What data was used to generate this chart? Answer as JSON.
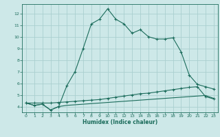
{
  "xlabel": "Humidex (Indice chaleur)",
  "bg_color": "#cde8e8",
  "line_color": "#1a6b5a",
  "grid_color": "#aacfcf",
  "xlim": [
    -0.5,
    23.5
  ],
  "ylim": [
    3.5,
    12.8
  ],
  "x_ticks": [
    0,
    1,
    2,
    3,
    4,
    5,
    6,
    7,
    8,
    9,
    10,
    11,
    12,
    13,
    14,
    15,
    16,
    17,
    18,
    19,
    20,
    21,
    22,
    23
  ],
  "y_ticks": [
    4,
    5,
    6,
    7,
    8,
    9,
    10,
    11,
    12
  ],
  "curve1_x": [
    0,
    1,
    2,
    3,
    4,
    5,
    6,
    7,
    8,
    9,
    10,
    11,
    12,
    13,
    14,
    15,
    16,
    17,
    18,
    19,
    20,
    21,
    22,
    23
  ],
  "curve1_y": [
    4.3,
    4.1,
    4.2,
    3.7,
    4.0,
    5.8,
    7.0,
    9.0,
    11.1,
    11.5,
    12.4,
    11.5,
    11.1,
    10.3,
    10.6,
    10.0,
    9.8,
    9.8,
    9.9,
    8.7,
    6.7,
    5.9,
    5.7,
    5.5
  ],
  "curve2_x": [
    0,
    1,
    2,
    3,
    4,
    5,
    6,
    7,
    8,
    9,
    10,
    11,
    12,
    13,
    14,
    15,
    16,
    17,
    18,
    19,
    20,
    21,
    22,
    23
  ],
  "curve2_y": [
    4.3,
    4.3,
    4.3,
    4.3,
    4.35,
    4.4,
    4.45,
    4.5,
    4.55,
    4.6,
    4.7,
    4.8,
    4.9,
    5.0,
    5.1,
    5.15,
    5.25,
    5.35,
    5.45,
    5.55,
    5.65,
    5.7,
    4.85,
    4.65
  ],
  "curve3_x": [
    0,
    1,
    2,
    3,
    4,
    5,
    6,
    7,
    8,
    9,
    10,
    11,
    12,
    13,
    14,
    15,
    16,
    17,
    18,
    19,
    20,
    21,
    22,
    23
  ],
  "curve3_y": [
    4.3,
    4.1,
    4.2,
    3.7,
    4.0,
    4.1,
    4.15,
    4.2,
    4.25,
    4.3,
    4.35,
    4.4,
    4.45,
    4.5,
    4.55,
    4.6,
    4.65,
    4.7,
    4.75,
    4.8,
    4.85,
    4.9,
    4.95,
    4.7
  ]
}
